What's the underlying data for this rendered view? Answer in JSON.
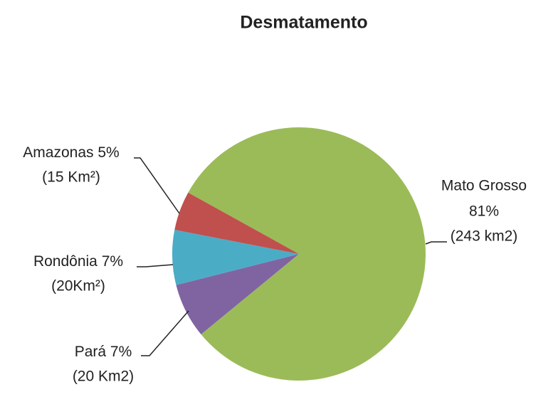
{
  "chart_data": {
    "type": "pie",
    "title": "Desmatamento",
    "categories": [
      "Mato Grosso",
      "Pará",
      "Rondônia",
      "Amazonas"
    ],
    "values": [
      81,
      7,
      7,
      5
    ],
    "value_labels": [
      "81%",
      "7%",
      "7%",
      "5%"
    ],
    "areas": [
      "(243 km2)",
      "(20 Km2)",
      "(20Km²)",
      "(15 Km²)"
    ],
    "colors": [
      "#9bbb59",
      "#8064a2",
      "#4bacc6",
      "#c0504d"
    ]
  }
}
